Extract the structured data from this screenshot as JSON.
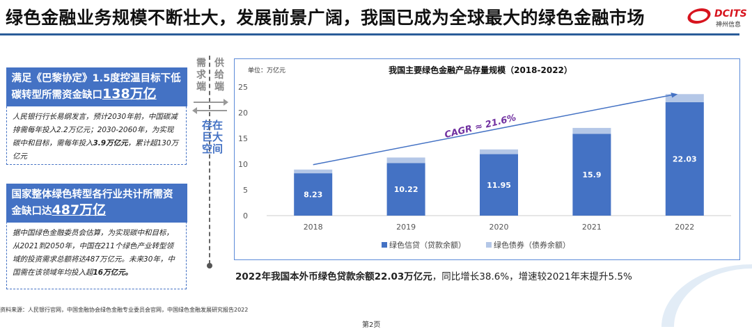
{
  "header": {
    "title": "绿色金融业务规模不断壮大，发展前景广阔，我国已成为全球最大的绿色金融市场",
    "logo_en": "DCITS",
    "logo_cn": "神州信息"
  },
  "left": {
    "box1": {
      "head": "满足《巴黎协定》1.5度控温目标下低碳转型所需资金缺口",
      "highlight": "138万亿",
      "body_pre": "人民银行行长易纲发言，预计2030年前，中国碳减排需每年投入2.2万亿元；2030-2060年，为实现碳中和目标，需每年投入",
      "body_bold": "3.9万亿元",
      "body_post": "，累计超130万亿元"
    },
    "box2": {
      "head": "国家整体绿色转型各行业共计所需资金缺口达",
      "highlight": "487万亿",
      "body_pre": "据中国绿色金融委员会估算，为实现碳中和目标，从2021到2050年，中国在211个绿色产业转型领域的投资需求总额将达487万亿元。未来30年，中国需在该领域年均投入超",
      "body_bold": "16万亿元。",
      "body_post": ""
    }
  },
  "middle": {
    "demand": "需求端",
    "supply": "供给端",
    "gap": "存在巨大空间"
  },
  "chart_data": {
    "type": "bar",
    "stacked": true,
    "title": "我国主要绿色金融产品存量规模（2018-2022）",
    "unit": "单位：万亿元",
    "categories": [
      "2018",
      "2019",
      "2020",
      "2021",
      "2022"
    ],
    "series": [
      {
        "name": "绿色信贷（贷款余额）",
        "values": [
          8.23,
          10.22,
          11.95,
          15.9,
          22.03
        ],
        "color": "#4472c4",
        "labels": [
          "8.23",
          "10.22",
          "11.95",
          "15.9",
          "22.03"
        ]
      },
      {
        "name": "绿色债券（债券余额）",
        "values": [
          0.72,
          1.07,
          0.91,
          1.14,
          1.58
        ],
        "color": "#b4c7e7"
      }
    ],
    "ylim": [
      0,
      25
    ],
    "yticks": [
      "0",
      "5",
      "10",
      "15",
      "20",
      "25"
    ],
    "annotation": "CAGR ≈ 21.6%",
    "annotation_color": "#7030a0",
    "legend": "bottom",
    "grid": false
  },
  "note": {
    "bold": "2022年我国本外币绿色贷款余额22.03万亿元",
    "rest": "，同比增长38.6%，增速较2021年末提升5.5%"
  },
  "source": "资料来源：人民银行官网，中国金融协会绿色金融专业委员会官网，中国绿色金融发展研究报告2022",
  "page": "第2页"
}
